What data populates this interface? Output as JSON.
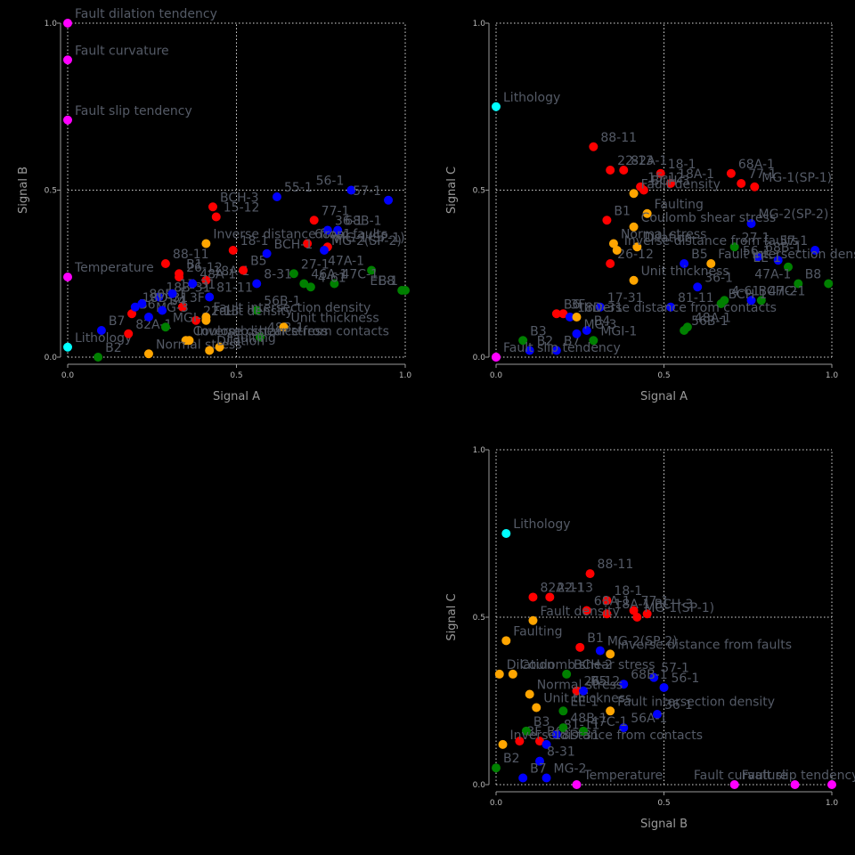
{
  "colors": {
    "red": "#ff0000",
    "blue": "#0000ff",
    "green": "#008000",
    "orange": "#ffa500",
    "cyan": "#00ffff",
    "magenta": "#ff00ff",
    "label": "#545a66"
  },
  "chart_data": [
    {
      "type": "scatter",
      "xlabel": "Signal A",
      "ylabel": "Signal B",
      "xlim": [
        0,
        1
      ],
      "ylim": [
        0,
        1
      ],
      "xticks": [
        "0.0",
        "0.5",
        "1.0"
      ],
      "yticks": [
        "0.0",
        "0.5",
        "1.0"
      ],
      "grid": true,
      "points": [
        {
          "label": "Fault dilation tendency",
          "x": 0.0,
          "y": 1.0,
          "color": "magenta"
        },
        {
          "label": "Fault curvature",
          "x": 0.0,
          "y": 0.89,
          "color": "magenta"
        },
        {
          "label": "Fault slip tendency",
          "x": 0.0,
          "y": 0.71,
          "color": "magenta"
        },
        {
          "label": "Temperature",
          "x": 0.0,
          "y": 0.24,
          "color": "magenta"
        },
        {
          "label": "Lithology",
          "x": 0.0,
          "y": 0.03,
          "color": "cyan"
        },
        {
          "label": "BCH-3",
          "x": 0.43,
          "y": 0.45,
          "color": "red"
        },
        {
          "label": "15-12",
          "x": 0.44,
          "y": 0.42,
          "color": "red"
        },
        {
          "label": "18-1",
          "x": 0.49,
          "y": 0.32,
          "color": "red"
        },
        {
          "label": "88-11",
          "x": 0.29,
          "y": 0.28,
          "color": "red"
        },
        {
          "label": "B1",
          "x": 0.33,
          "y": 0.25,
          "color": "red"
        },
        {
          "label": "26-12",
          "x": 0.33,
          "y": 0.24,
          "color": "red"
        },
        {
          "label": "18A-1",
          "x": 0.41,
          "y": 0.23,
          "color": "red"
        },
        {
          "label": "B5",
          "x": 0.52,
          "y": 0.26,
          "color": "red"
        },
        {
          "label": "77-1",
          "x": 0.73,
          "y": 0.41,
          "color": "red"
        },
        {
          "label": "MG-1(SP-1)",
          "x": 0.77,
          "y": 0.33,
          "color": "red"
        },
        {
          "label": "68A-1",
          "x": 0.71,
          "y": 0.34,
          "color": "red"
        },
        {
          "label": "22-13",
          "x": 0.38,
          "y": 0.11,
          "color": "red"
        },
        {
          "label": "B6",
          "x": 0.19,
          "y": 0.13,
          "color": "red"
        },
        {
          "label": "82A-1",
          "x": 0.18,
          "y": 0.07,
          "color": "red"
        },
        {
          "label": "3F",
          "x": 0.34,
          "y": 0.15,
          "color": "red"
        },
        {
          "label": "56-1",
          "x": 0.84,
          "y": 0.5,
          "color": "blue"
        },
        {
          "label": "57-1",
          "x": 0.95,
          "y": 0.47,
          "color": "blue"
        },
        {
          "label": "55-1",
          "x": 0.62,
          "y": 0.48,
          "color": "blue"
        },
        {
          "label": "36-1",
          "x": 0.77,
          "y": 0.38,
          "color": "blue"
        },
        {
          "label": "68B-1",
          "x": 0.8,
          "y": 0.38,
          "color": "blue"
        },
        {
          "label": "BCH-1",
          "x": 0.59,
          "y": 0.31,
          "color": "blue"
        },
        {
          "label": "MG-2(SP-2)",
          "x": 0.76,
          "y": 0.32,
          "color": "blue"
        },
        {
          "label": "8-31",
          "x": 0.56,
          "y": 0.22,
          "color": "blue"
        },
        {
          "label": "81-11",
          "x": 0.42,
          "y": 0.18,
          "color": "blue"
        },
        {
          "label": "18B-31",
          "x": 0.27,
          "y": 0.18,
          "color": "blue"
        },
        {
          "label": "B7",
          "x": 0.1,
          "y": 0.08,
          "color": "blue"
        },
        {
          "label": "18D-31",
          "x": 0.2,
          "y": 0.15,
          "color": "blue"
        },
        {
          "label": "80B-1",
          "x": 0.22,
          "y": 0.16,
          "color": "blue"
        },
        {
          "label": "MG-3",
          "x": 0.24,
          "y": 0.12,
          "color": "blue"
        },
        {
          "label": "B4",
          "x": 0.28,
          "y": 0.14,
          "color": "blue"
        },
        {
          "label": "17-31",
          "x": 0.31,
          "y": 0.19,
          "color": "blue"
        },
        {
          "label": "48A-1",
          "x": 0.37,
          "y": 0.22,
          "color": "blue"
        },
        {
          "label": "46A-1",
          "x": 0.7,
          "y": 0.22,
          "color": "green"
        },
        {
          "label": "47A-1",
          "x": 0.9,
          "y": 0.26,
          "color": "green"
        },
        {
          "label": "B8",
          "x": 0.99,
          "y": 0.2,
          "color": "green"
        },
        {
          "label": "EE-1",
          "x": 1.0,
          "y": 0.2,
          "color": "green"
        },
        {
          "label": "47C-1",
          "x": 0.79,
          "y": 0.22,
          "color": "green"
        },
        {
          "label": "27-1",
          "x": 0.67,
          "y": 0.25,
          "color": "green"
        },
        {
          "label": "4-61",
          "x": 0.72,
          "y": 0.21,
          "color": "green"
        },
        {
          "label": "56B-1",
          "x": 0.56,
          "y": 0.14,
          "color": "green"
        },
        {
          "label": "48B-1",
          "x": 0.57,
          "y": 0.06,
          "color": "green"
        },
        {
          "label": "MGI-1",
          "x": 0.29,
          "y": 0.09,
          "color": "green"
        },
        {
          "label": "B2",
          "x": 0.09,
          "y": 0.0,
          "color": "green"
        },
        {
          "label": "Unit thickness",
          "x": 0.64,
          "y": 0.09,
          "color": "orange"
        },
        {
          "label": "Fault density",
          "x": 0.41,
          "y": 0.11,
          "color": "orange"
        },
        {
          "label": "Fault intersection density",
          "x": 0.41,
          "y": 0.12,
          "color": "orange"
        },
        {
          "label": "Inverse distance from faults",
          "x": 0.41,
          "y": 0.34,
          "color": "orange"
        },
        {
          "label": "Coulomb shear stress",
          "x": 0.35,
          "y": 0.05,
          "color": "orange"
        },
        {
          "label": "Normal stress",
          "x": 0.24,
          "y": 0.01,
          "color": "orange"
        },
        {
          "label": "Faulting",
          "x": 0.45,
          "y": 0.03,
          "color": "orange"
        },
        {
          "label": "Dilation",
          "x": 0.42,
          "y": 0.02,
          "color": "orange"
        },
        {
          "label": "Inverse distance from contacts",
          "x": 0.36,
          "y": 0.05,
          "color": "orange"
        }
      ]
    },
    {
      "type": "scatter",
      "xlabel": "Signal A",
      "ylabel": "Signal C",
      "xlim": [
        0,
        1
      ],
      "ylim": [
        0,
        1
      ],
      "xticks": [
        "0.0",
        "0.5",
        "1.0"
      ],
      "yticks": [
        "0.0",
        "0.5",
        "1.0"
      ],
      "grid": true,
      "points": [
        {
          "label": "Lithology",
          "x": 0.0,
          "y": 0.75,
          "color": "cyan"
        },
        {
          "label": "",
          "x": 0.0,
          "y": 0.0,
          "color": "magenta"
        },
        {
          "label": "88-11",
          "x": 0.29,
          "y": 0.63,
          "color": "red"
        },
        {
          "label": "82A-1",
          "x": 0.38,
          "y": 0.56,
          "color": "red"
        },
        {
          "label": "22-13",
          "x": 0.34,
          "y": 0.56,
          "color": "red"
        },
        {
          "label": "18-1",
          "x": 0.49,
          "y": 0.55,
          "color": "red"
        },
        {
          "label": "18A-1",
          "x": 0.52,
          "y": 0.52,
          "color": "red"
        },
        {
          "label": "15-12",
          "x": 0.43,
          "y": 0.51,
          "color": "red"
        },
        {
          "label": "BCH-3",
          "x": 0.44,
          "y": 0.5,
          "color": "red"
        },
        {
          "label": "68A-1",
          "x": 0.7,
          "y": 0.55,
          "color": "red"
        },
        {
          "label": "77-1",
          "x": 0.73,
          "y": 0.52,
          "color": "red"
        },
        {
          "label": "MG-1(SP-1)",
          "x": 0.77,
          "y": 0.51,
          "color": "red"
        },
        {
          "label": "B1",
          "x": 0.33,
          "y": 0.41,
          "color": "red"
        },
        {
          "label": "26-12",
          "x": 0.34,
          "y": 0.28,
          "color": "red"
        },
        {
          "label": "B6",
          "x": 0.18,
          "y": 0.13,
          "color": "red"
        },
        {
          "label": "3F",
          "x": 0.2,
          "y": 0.13,
          "color": "red"
        },
        {
          "label": "MG-2(SP-2)",
          "x": 0.76,
          "y": 0.4,
          "color": "blue"
        },
        {
          "label": "57-1",
          "x": 0.95,
          "y": 0.32,
          "color": "blue"
        },
        {
          "label": "68B-1",
          "x": 0.78,
          "y": 0.3,
          "color": "blue"
        },
        {
          "label": "56-1",
          "x": 0.84,
          "y": 0.29,
          "color": "blue"
        },
        {
          "label": "B5",
          "x": 0.56,
          "y": 0.28,
          "color": "blue"
        },
        {
          "label": "36-1",
          "x": 0.6,
          "y": 0.21,
          "color": "blue"
        },
        {
          "label": "BCH-2",
          "x": 0.76,
          "y": 0.17,
          "color": "blue"
        },
        {
          "label": "81-11",
          "x": 0.52,
          "y": 0.15,
          "color": "blue"
        },
        {
          "label": "17-31",
          "x": 0.31,
          "y": 0.15,
          "color": "blue"
        },
        {
          "label": "18D-31",
          "x": 0.22,
          "y": 0.12,
          "color": "blue"
        },
        {
          "label": "B4",
          "x": 0.27,
          "y": 0.08,
          "color": "blue"
        },
        {
          "label": "B2",
          "x": 0.1,
          "y": 0.02,
          "color": "blue"
        },
        {
          "label": "B7",
          "x": 0.18,
          "y": 0.02,
          "color": "blue"
        },
        {
          "label": "MG-3",
          "x": 0.24,
          "y": 0.07,
          "color": "blue"
        },
        {
          "label": "48A-1",
          "x": 0.57,
          "y": 0.09,
          "color": "green"
        },
        {
          "label": "56B-1",
          "x": 0.56,
          "y": 0.08,
          "color": "green"
        },
        {
          "label": "MGI-1",
          "x": 0.29,
          "y": 0.05,
          "color": "green"
        },
        {
          "label": "EE-1",
          "x": 0.87,
          "y": 0.27,
          "color": "green"
        },
        {
          "label": "27-1",
          "x": 0.71,
          "y": 0.33,
          "color": "green"
        },
        {
          "label": "47A-1",
          "x": 0.9,
          "y": 0.22,
          "color": "green"
        },
        {
          "label": "B8",
          "x": 0.99,
          "y": 0.22,
          "color": "green"
        },
        {
          "label": "47C-1",
          "x": 0.79,
          "y": 0.17,
          "color": "green"
        },
        {
          "label": "4-61",
          "x": 0.68,
          "y": 0.17,
          "color": "green"
        },
        {
          "label": "BCH-1",
          "x": 0.67,
          "y": 0.16,
          "color": "green"
        },
        {
          "label": "B3",
          "x": 0.08,
          "y": 0.05,
          "color": "green"
        },
        {
          "label": "Fault density",
          "x": 0.41,
          "y": 0.49,
          "color": "orange"
        },
        {
          "label": "Faulting",
          "x": 0.45,
          "y": 0.43,
          "color": "orange"
        },
        {
          "label": "Coulomb shear stress",
          "x": 0.41,
          "y": 0.39,
          "color": "orange"
        },
        {
          "label": "Normal stress",
          "x": 0.35,
          "y": 0.34,
          "color": "orange"
        },
        {
          "label": "Dilation",
          "x": 0.42,
          "y": 0.33,
          "color": "orange"
        },
        {
          "label": "Fault intersection density",
          "x": 0.64,
          "y": 0.28,
          "color": "orange"
        },
        {
          "label": "Unit thickness",
          "x": 0.41,
          "y": 0.23,
          "color": "orange"
        },
        {
          "label": "Inverse distance from contacts",
          "x": 0.24,
          "y": 0.12,
          "color": "orange"
        },
        {
          "label": "Inverse distance from faults",
          "x": 0.36,
          "y": 0.32,
          "color": "orange"
        },
        {
          "label": "Fault slip tendency",
          "x": 0.0,
          "y": 0.0,
          "color": "magenta"
        }
      ]
    },
    {
      "type": "scatter",
      "xlabel": "Signal B",
      "ylabel": "Signal C",
      "xlim": [
        0,
        1
      ],
      "ylim": [
        0,
        1
      ],
      "xticks": [
        "0.0",
        "0.5",
        "1.0"
      ],
      "yticks": [
        "0.0",
        "0.5",
        "1.0"
      ],
      "grid": true,
      "points": [
        {
          "label": "Lithology",
          "x": 0.03,
          "y": 0.75,
          "color": "cyan"
        },
        {
          "label": "88-11",
          "x": 0.28,
          "y": 0.63,
          "color": "red"
        },
        {
          "label": "82A-11",
          "x": 0.11,
          "y": 0.56,
          "color": "red"
        },
        {
          "label": "22-13",
          "x": 0.16,
          "y": 0.56,
          "color": "red"
        },
        {
          "label": "18-1",
          "x": 0.33,
          "y": 0.55,
          "color": "red"
        },
        {
          "label": "68A-1",
          "x": 0.27,
          "y": 0.52,
          "color": "red"
        },
        {
          "label": "77-1",
          "x": 0.41,
          "y": 0.52,
          "color": "red"
        },
        {
          "label": "BCH-3",
          "x": 0.45,
          "y": 0.51,
          "color": "red"
        },
        {
          "label": "18A-1",
          "x": 0.33,
          "y": 0.51,
          "color": "red"
        },
        {
          "label": "B1",
          "x": 0.25,
          "y": 0.41,
          "color": "red"
        },
        {
          "label": "MG-1(SP-1)",
          "x": 0.42,
          "y": 0.5,
          "color": "red"
        },
        {
          "label": "26-12",
          "x": 0.24,
          "y": 0.28,
          "color": "red"
        },
        {
          "label": "3F",
          "x": 0.07,
          "y": 0.13,
          "color": "red"
        },
        {
          "label": "B6",
          "x": 0.13,
          "y": 0.13,
          "color": "red"
        },
        {
          "label": "MG-2(SP-2)",
          "x": 0.31,
          "y": 0.4,
          "color": "blue"
        },
        {
          "label": "57-1",
          "x": 0.47,
          "y": 0.32,
          "color": "blue"
        },
        {
          "label": "56-1",
          "x": 0.5,
          "y": 0.29,
          "color": "blue"
        },
        {
          "label": "68B-1",
          "x": 0.38,
          "y": 0.3,
          "color": "blue"
        },
        {
          "label": "36-1",
          "x": 0.48,
          "y": 0.21,
          "color": "blue"
        },
        {
          "label": "56A-1",
          "x": 0.38,
          "y": 0.17,
          "color": "blue"
        },
        {
          "label": "B5",
          "x": 0.26,
          "y": 0.28,
          "color": "blue"
        },
        {
          "label": "81-11",
          "x": 0.18,
          "y": 0.15,
          "color": "blue"
        },
        {
          "label": "18D-31",
          "x": 0.15,
          "y": 0.12,
          "color": "blue"
        },
        {
          "label": "8-31",
          "x": 0.13,
          "y": 0.07,
          "color": "blue"
        },
        {
          "label": "MG-2",
          "x": 0.15,
          "y": 0.02,
          "color": "blue"
        },
        {
          "label": "B7",
          "x": 0.08,
          "y": 0.02,
          "color": "blue"
        },
        {
          "label": "BCH-2",
          "x": 0.21,
          "y": 0.33,
          "color": "green"
        },
        {
          "label": "47C-1",
          "x": 0.26,
          "y": 0.16,
          "color": "green"
        },
        {
          "label": "EE-1",
          "x": 0.2,
          "y": 0.22,
          "color": "green"
        },
        {
          "label": "B3",
          "x": 0.09,
          "y": 0.16,
          "color": "green"
        },
        {
          "label": "48B-1",
          "x": 0.2,
          "y": 0.17,
          "color": "green"
        },
        {
          "label": "B2",
          "x": 0.0,
          "y": 0.05,
          "color": "green"
        },
        {
          "label": "Fault density",
          "x": 0.11,
          "y": 0.49,
          "color": "orange"
        },
        {
          "label": "Faulting",
          "x": 0.03,
          "y": 0.43,
          "color": "orange"
        },
        {
          "label": "Inverse distance from faults",
          "x": 0.34,
          "y": 0.39,
          "color": "orange"
        },
        {
          "label": "Coulomb shear stress",
          "x": 0.05,
          "y": 0.33,
          "color": "orange"
        },
        {
          "label": "Dilation",
          "x": 0.01,
          "y": 0.33,
          "color": "orange"
        },
        {
          "label": "Normal stress",
          "x": 0.1,
          "y": 0.27,
          "color": "orange"
        },
        {
          "label": "Unit thickness",
          "x": 0.12,
          "y": 0.23,
          "color": "orange"
        },
        {
          "label": "Fault intersection density",
          "x": 0.34,
          "y": 0.22,
          "color": "orange"
        },
        {
          "label": "Inverse distance from contacts",
          "x": 0.02,
          "y": 0.12,
          "color": "orange"
        },
        {
          "label": "Temperature",
          "x": 0.24,
          "y": 0.0,
          "color": "magenta"
        },
        {
          "label": "Fault slip tendency",
          "x": 0.71,
          "y": 0.0,
          "color": "magenta"
        },
        {
          "label": "Fault curvature",
          "x": 0.89,
          "y": 0.0,
          "color": "magenta"
        },
        {
          "label": "",
          "x": 1.0,
          "y": 0.0,
          "color": "magenta"
        }
      ]
    }
  ]
}
